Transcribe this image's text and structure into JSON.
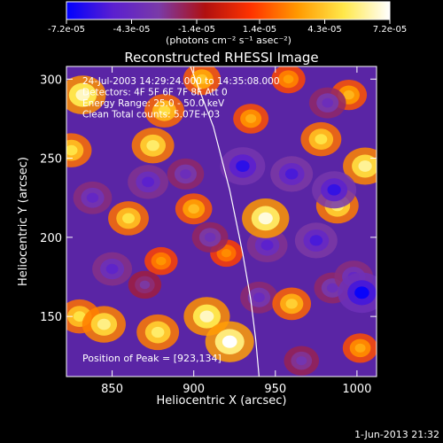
{
  "colorbar": {
    "ticks": [
      "-7.2e-05",
      "-4.3e-05",
      "-1.4e-05",
      "1.4e-05",
      "4.3e-05",
      "7.2e-05"
    ],
    "range": [
      -7.2e-05,
      7.2e-05
    ],
    "unit_label": "(photons cm⁻² s⁻¹ asec⁻²)",
    "colors": [
      "#0000ff",
      "#5a1fd0",
      "#7a3aa8",
      "#b01010",
      "#ff3300",
      "#ff9900",
      "#ffe84a",
      "#ffffff"
    ]
  },
  "chart_data": {
    "type": "heatmap",
    "title": "Reconstructed RHESSI Image",
    "xlabel": "Heliocentric X (arcsec)",
    "ylabel": "Heliocentric Y (arcsec)",
    "xlim": [
      822,
      1012
    ],
    "ylim": [
      112,
      308
    ],
    "xticks": [
      850,
      900,
      950,
      1000
    ],
    "yticks": [
      150,
      200,
      250,
      300
    ],
    "x_tick_labels": [
      "850",
      "900",
      "950",
      "1000"
    ],
    "y_tick_labels": [
      "150",
      "200",
      "250",
      "300"
    ],
    "annotations": [
      "24-Jul-2003 14:29:24.000 to 14:35:08.000",
      "Detectors: 4F 5F 6F 7F 8F Att 0",
      "Energy Range: 25.0 - 50.0 keV",
      "Clean     Total counts: 5.07E+03"
    ],
    "peak_label": "Position of Peak = [923,134]",
    "peak": [
      923,
      134
    ],
    "features": [
      {
        "x": 922,
        "y": 134,
        "value": 7.2e-05
      },
      {
        "x": 908,
        "y": 150,
        "value": 6.5e-05
      },
      {
        "x": 878,
        "y": 140,
        "value": 5.5e-05
      },
      {
        "x": 845,
        "y": 145,
        "value": 5.8e-05
      },
      {
        "x": 830,
        "y": 150,
        "value": 5e-05
      },
      {
        "x": 832,
        "y": 290,
        "value": 6.5e-05
      },
      {
        "x": 825,
        "y": 255,
        "value": 5e-05
      },
      {
        "x": 875,
        "y": 258,
        "value": 5.5e-05
      },
      {
        "x": 882,
        "y": 280,
        "value": 4.8e-05
      },
      {
        "x": 860,
        "y": 212,
        "value": 5e-05
      },
      {
        "x": 900,
        "y": 218,
        "value": 4e-05
      },
      {
        "x": 944,
        "y": 212,
        "value": 6.8e-05
      },
      {
        "x": 960,
        "y": 158,
        "value": 4.5e-05
      },
      {
        "x": 978,
        "y": 262,
        "value": 5e-05
      },
      {
        "x": 988,
        "y": 220,
        "value": 5.5e-05
      },
      {
        "x": 1005,
        "y": 245,
        "value": 6e-05
      },
      {
        "x": 905,
        "y": 300,
        "value": 4.2e-05
      },
      {
        "x": 995,
        "y": 290,
        "value": 3.8e-05
      },
      {
        "x": 1002,
        "y": 130,
        "value": 3.5e-05
      },
      {
        "x": 935,
        "y": 275,
        "value": 3.6e-05
      },
      {
        "x": 880,
        "y": 185,
        "value": 3e-05
      },
      {
        "x": 920,
        "y": 190,
        "value": 2.8e-05
      },
      {
        "x": 958,
        "y": 300,
        "value": 3.2e-05
      },
      {
        "x": 850,
        "y": 180,
        "value": -4.8e-05
      },
      {
        "x": 838,
        "y": 225,
        "value": -4.5e-05
      },
      {
        "x": 872,
        "y": 235,
        "value": -5e-05
      },
      {
        "x": 895,
        "y": 240,
        "value": -4e-05
      },
      {
        "x": 930,
        "y": 245,
        "value": -6.2e-05
      },
      {
        "x": 960,
        "y": 240,
        "value": -5.5e-05
      },
      {
        "x": 986,
        "y": 230,
        "value": -6e-05
      },
      {
        "x": 945,
        "y": 195,
        "value": -5e-05
      },
      {
        "x": 975,
        "y": 198,
        "value": -5.5e-05
      },
      {
        "x": 998,
        "y": 175,
        "value": -4.5e-05
      },
      {
        "x": 1003,
        "y": 165,
        "value": -7e-05
      },
      {
        "x": 985,
        "y": 168,
        "value": -4e-05
      },
      {
        "x": 910,
        "y": 200,
        "value": -3.8e-05
      },
      {
        "x": 982,
        "y": 285,
        "value": -4e-05
      },
      {
        "x": 940,
        "y": 162,
        "value": -4.2e-05
      },
      {
        "x": 966,
        "y": 122,
        "value": -3.5e-05
      },
      {
        "x": 870,
        "y": 170,
        "value": -3e-05
      }
    ],
    "limb": [
      [
        898,
        308
      ],
      [
        912,
        270
      ],
      [
        922,
        230
      ],
      [
        930,
        190
      ],
      [
        935,
        160
      ],
      [
        938,
        135
      ],
      [
        940,
        112
      ]
    ],
    "grid": false
  },
  "footer": {
    "date": "1-Jun-2013 21:32"
  }
}
